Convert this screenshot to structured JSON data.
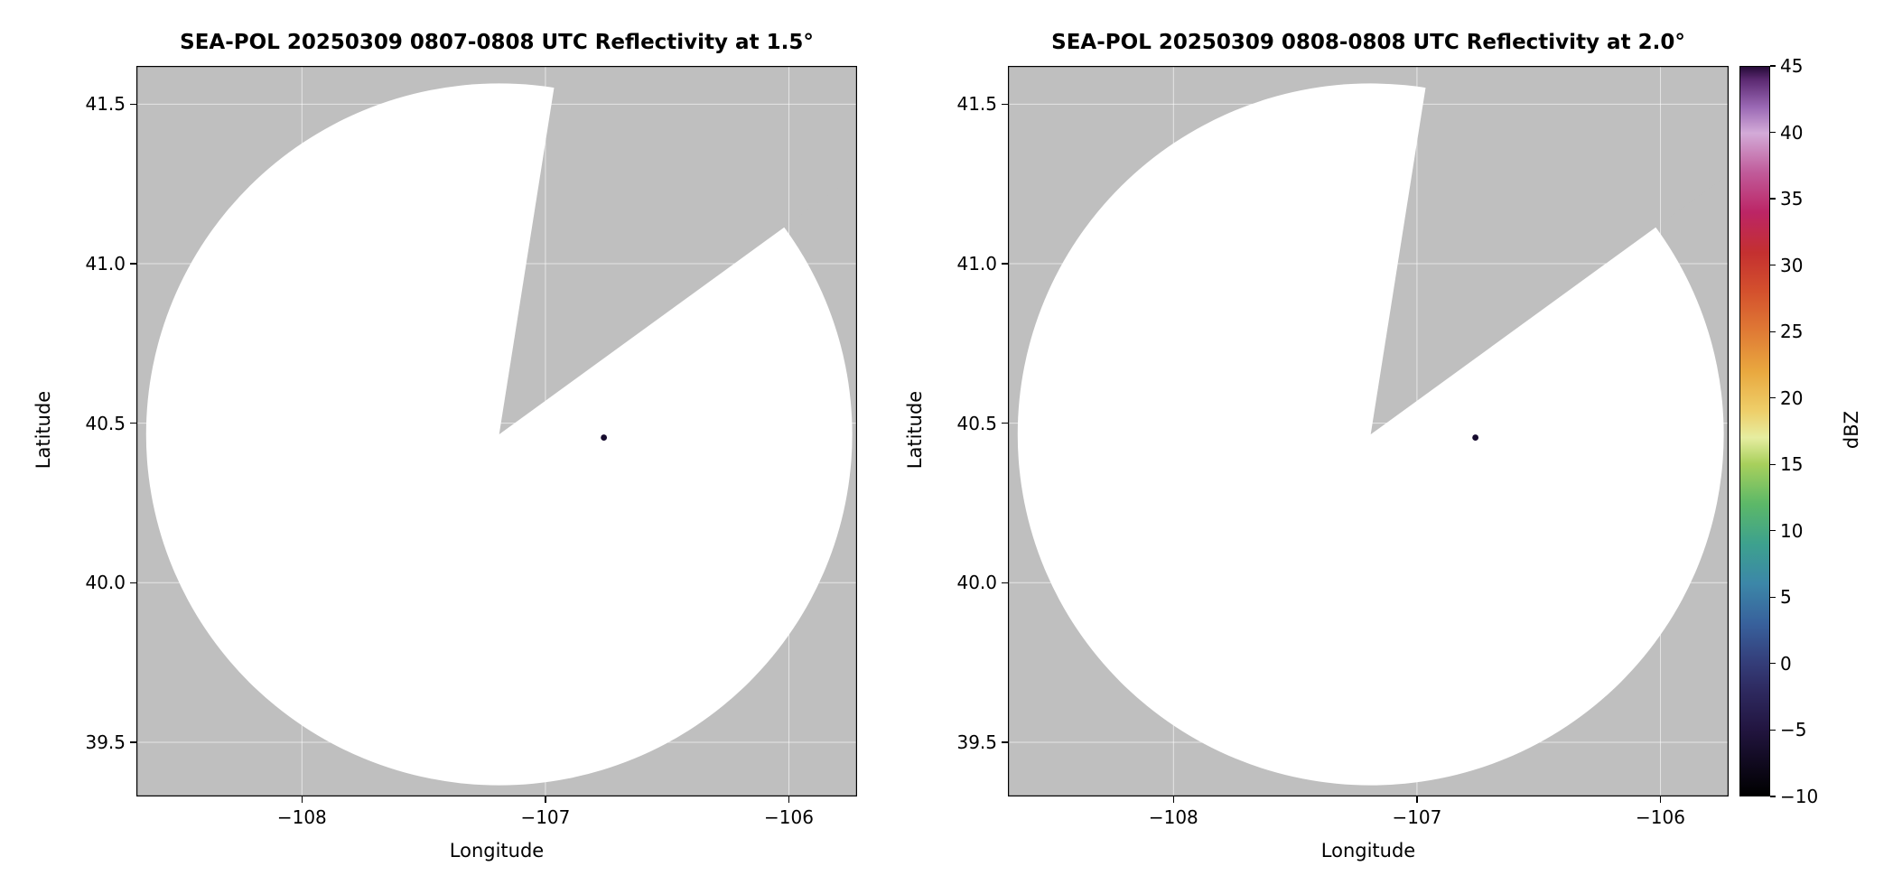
{
  "chart_data": {
    "type": "heatmap",
    "subtype": "radar_ppi_reflectivity",
    "figure_background": "#ffffff",
    "no_data_color": "#bfbfbf",
    "coverage_background_color": "#ffffff",
    "grid": true,
    "panels": [
      {
        "title": "SEA-POL 20250309 0807-0808 UTC Reflectivity at 1.5°",
        "radar_name": "SEA-POL",
        "date": "20250309",
        "time_utc": "0807-0808",
        "elevation_deg": 1.5,
        "xlabel": "Longitude",
        "ylabel": "Latitude",
        "xlim": [
          -108.68,
          -105.72
        ],
        "ylim": [
          39.33,
          41.62
        ],
        "xticks": [
          -108,
          -107,
          -106
        ],
        "xtick_labels": [
          "−108",
          "−107",
          "−106"
        ],
        "yticks": [
          41.5,
          41.0,
          40.5,
          40.0,
          39.5
        ],
        "ytick_labels": [
          "41.5",
          "41.0",
          "40.5",
          "40.0",
          "39.5"
        ],
        "radar_center": {
          "lon": -107.19,
          "lat": 40.465
        },
        "coverage_radius_deg": {
          "lon": 1.45,
          "lat": 1.1
        },
        "blocked_sector_azimuth_deg": [
          9,
          54
        ],
        "echoes": [
          {
            "lon": -106.76,
            "lat": 40.455,
            "approx_dbz": 45
          }
        ]
      },
      {
        "title": "SEA-POL 20250309 0808-0808 UTC Reflectivity at 2.0°",
        "radar_name": "SEA-POL",
        "date": "20250309",
        "time_utc": "0808-0808",
        "elevation_deg": 2.0,
        "xlabel": "Longitude",
        "ylabel": "Latitude",
        "xlim": [
          -108.68,
          -105.72
        ],
        "ylim": [
          39.33,
          41.62
        ],
        "xticks": [
          -108,
          -107,
          -106
        ],
        "xtick_labels": [
          "−108",
          "−107",
          "−106"
        ],
        "yticks": [
          41.5,
          41.0,
          40.5,
          40.0,
          39.5
        ],
        "ytick_labels": [
          "41.5",
          "41.0",
          "40.5",
          "40.0",
          "39.5"
        ],
        "radar_center": {
          "lon": -107.19,
          "lat": 40.465
        },
        "coverage_radius_deg": {
          "lon": 1.45,
          "lat": 1.1
        },
        "blocked_sector_azimuth_deg": [
          9,
          54
        ],
        "echoes": [
          {
            "lon": -106.76,
            "lat": 40.455,
            "approx_dbz": 45
          }
        ]
      }
    ],
    "colorbar": {
      "label": "dBZ",
      "min": -10,
      "max": 45,
      "ticks": [
        -10,
        -5,
        0,
        5,
        10,
        15,
        20,
        25,
        30,
        35,
        40,
        45
      ],
      "tick_labels": [
        "−10",
        "−5",
        "0",
        "5",
        "10",
        "15",
        "20",
        "25",
        "30",
        "35",
        "40",
        "45"
      ],
      "gradient_stops": [
        {
          "value": -10,
          "color": "#000000"
        },
        {
          "value": -7,
          "color": "#140c26"
        },
        {
          "value": -5,
          "color": "#221540"
        },
        {
          "value": -2,
          "color": "#2e2a60"
        },
        {
          "value": 0,
          "color": "#343d79"
        },
        {
          "value": 3,
          "color": "#38619c"
        },
        {
          "value": 6,
          "color": "#3c87a8"
        },
        {
          "value": 9,
          "color": "#3da18e"
        },
        {
          "value": 12,
          "color": "#5cb868"
        },
        {
          "value": 15,
          "color": "#a8d05c"
        },
        {
          "value": 17,
          "color": "#e6eda0"
        },
        {
          "value": 19,
          "color": "#eecf6a"
        },
        {
          "value": 22,
          "color": "#e9a83f"
        },
        {
          "value": 25,
          "color": "#e07b35"
        },
        {
          "value": 28,
          "color": "#d4512d"
        },
        {
          "value": 31,
          "color": "#c43030"
        },
        {
          "value": 34,
          "color": "#bc2565"
        },
        {
          "value": 37,
          "color": "#c05b9a"
        },
        {
          "value": 40,
          "color": "#d3abd8"
        },
        {
          "value": 42,
          "color": "#9a68b4"
        },
        {
          "value": 44,
          "color": "#5c2a72"
        },
        {
          "value": 45,
          "color": "#260b38"
        }
      ]
    }
  }
}
